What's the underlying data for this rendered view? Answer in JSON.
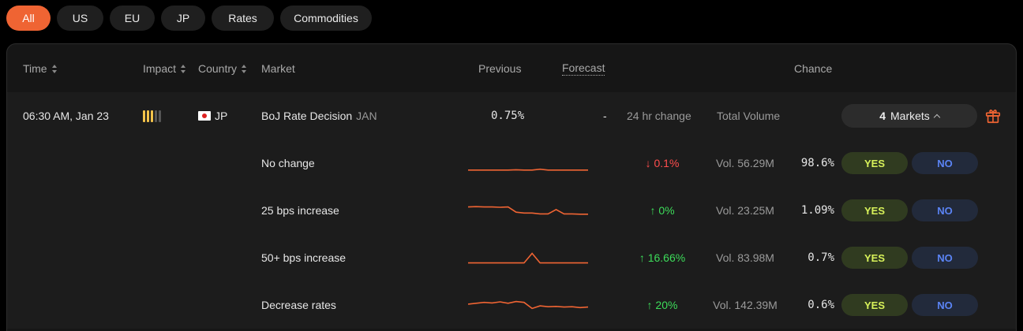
{
  "filters": [
    "All",
    "US",
    "EU",
    "JP",
    "Rates",
    "Commodities"
  ],
  "header": {
    "time": "Time",
    "impact": "Impact",
    "country": "Country",
    "market": "Market",
    "previous": "Previous",
    "forecast": "Forecast",
    "chance": "Chance"
  },
  "event": {
    "time": "06:30 AM, Jan 23",
    "impact_level": 3,
    "impact_max": 5,
    "country": "JP",
    "title": "BoJ Rate Decision",
    "period": "JAN",
    "previous": "0.75%",
    "forecast": "-",
    "change_label": "24 hr change",
    "volume_label": "Total Volume",
    "markets_count": "4",
    "markets_label": "Markets"
  },
  "colors": {
    "accent": "#ef6433",
    "up": "#3ddc5a",
    "down": "#ff4d4d",
    "yes": "#d8f25a",
    "no": "#5b84f5"
  },
  "outcomes": [
    {
      "name": "No change",
      "change": "↓ 0.1%",
      "direction": "down",
      "volume": "Vol. 56.29M",
      "chance": "98.6%",
      "yes": "YES",
      "no": "NO",
      "spark": [
        0.1,
        0.1,
        0.1,
        0.1,
        0.1,
        0.1,
        0.12,
        0.1,
        0.1,
        0.15,
        0.1,
        0.1,
        0.1,
        0.1,
        0.1,
        0.1
      ]
    },
    {
      "name": "25 bps increase",
      "change": "↑ 0%",
      "direction": "up",
      "volume": "Vol. 23.25M",
      "chance": "1.09%",
      "yes": "YES",
      "no": "NO",
      "spark": [
        0.7,
        0.72,
        0.7,
        0.7,
        0.68,
        0.7,
        0.4,
        0.35,
        0.35,
        0.3,
        0.3,
        0.55,
        0.3,
        0.3,
        0.28,
        0.28
      ]
    },
    {
      "name": "50+ bps increase",
      "change": "↑ 16.66%",
      "direction": "up",
      "volume": "Vol. 83.98M",
      "chance": "0.7%",
      "yes": "YES",
      "no": "NO",
      "spark": [
        0.2,
        0.2,
        0.2,
        0.2,
        0.2,
        0.2,
        0.2,
        0.2,
        0.75,
        0.2,
        0.2,
        0.2,
        0.2,
        0.2,
        0.2,
        0.2
      ]
    },
    {
      "name": "Decrease rates",
      "change": "↑ 20%",
      "direction": "up",
      "volume": "Vol. 142.39M",
      "chance": "0.6%",
      "yes": "YES",
      "no": "NO",
      "spark": [
        0.55,
        0.6,
        0.65,
        0.62,
        0.68,
        0.6,
        0.7,
        0.65,
        0.3,
        0.45,
        0.4,
        0.42,
        0.38,
        0.4,
        0.35,
        0.38
      ]
    }
  ]
}
